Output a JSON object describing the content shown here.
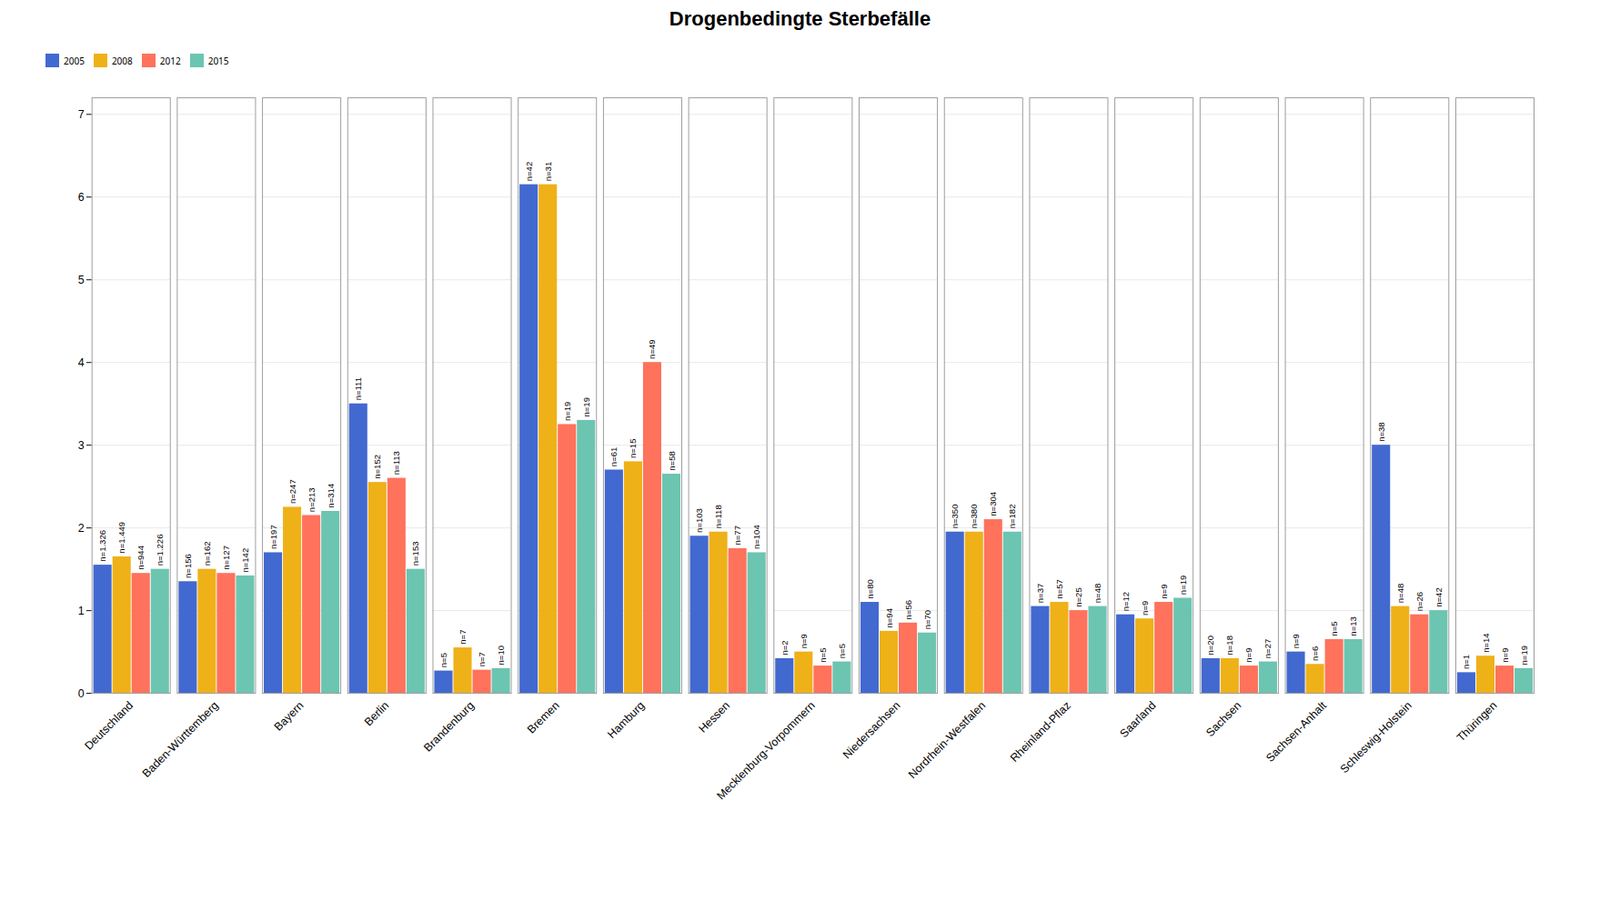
{
  "chart_data": {
    "type": "bar",
    "title": "Drogenbedingte Sterbefälle",
    "categories": [
      "Deutschland",
      "Baden-Württemberg",
      "Bayern",
      "Berlin",
      "Brandenburg",
      "Bremen",
      "Hamburg",
      "Hessen",
      "Mecklenburg-Vorpommern",
      "Niedersachsen",
      "Nordrhein-Westfalen",
      "Rheinland-Pflaz",
      "Saarland",
      "Sachsen",
      "Sachsen-Anhalt",
      "Schleswig-Holstein",
      "Thüringen"
    ],
    "series": [
      {
        "name": "2005",
        "values": [
          1.55,
          1.35,
          1.7,
          3.5,
          0.27,
          6.15,
          2.7,
          1.9,
          0.42,
          1.1,
          1.95,
          1.05,
          0.95,
          0.42,
          0.5,
          3.0,
          0.25
        ],
        "annotations": [
          "n=1.326",
          "n=156",
          "n=197",
          "n=111",
          "n=5",
          "n=42",
          "n=61",
          "n=103",
          "n=2",
          "n=80",
          "n=350",
          "n=37",
          "n=12",
          "n=20",
          "n=9",
          "n=38",
          "n=1"
        ]
      },
      {
        "name": "2008",
        "values": [
          1.65,
          1.5,
          2.25,
          2.55,
          0.55,
          6.15,
          2.8,
          1.95,
          0.5,
          0.75,
          1.95,
          1.1,
          0.9,
          0.42,
          0.35,
          1.05,
          0.45
        ],
        "annotations": [
          "n=1.449",
          "n=162",
          "n=247",
          "n=152",
          "n=7",
          "n=31",
          "n=15",
          "n=118",
          "n=9",
          "n=94",
          "n=380",
          "n=57",
          "n=9",
          "n=18",
          "n=6",
          "n=48",
          "n=14"
        ]
      },
      {
        "name": "2012",
        "values": [
          1.45,
          1.45,
          2.15,
          2.6,
          0.28,
          3.25,
          4.0,
          1.75,
          0.33,
          0.85,
          2.1,
          1.0,
          1.1,
          0.33,
          0.65,
          0.95,
          0.33
        ],
        "annotations": [
          "n=944",
          "n=127",
          "n=213",
          "n=113",
          "n=7",
          "n=19",
          "n=49",
          "n=77",
          "n=5",
          "n=56",
          "n=304",
          "n=25",
          "n=9",
          "n=9",
          "n=5",
          "n=26",
          "n=9"
        ]
      },
      {
        "name": "2015",
        "values": [
          1.5,
          1.42,
          2.2,
          1.5,
          0.3,
          3.3,
          2.65,
          1.7,
          0.38,
          0.73,
          1.95,
          1.05,
          1.15,
          0.38,
          0.65,
          1.0,
          0.3
        ],
        "annotations": [
          "n=1.226",
          "n=142",
          "n=314",
          "n=153",
          "n=10",
          "n=19",
          "n=58",
          "n=104",
          "n=5",
          "n=70",
          "n=182",
          "n=48",
          "n=19",
          "n=27",
          "n=13",
          "n=42",
          "n=19"
        ]
      }
    ],
    "ylim": [
      0,
      7.2
    ],
    "yticks": [
      0,
      1,
      2,
      3,
      4,
      5,
      6,
      7
    ],
    "grid": true,
    "legend": "top"
  }
}
